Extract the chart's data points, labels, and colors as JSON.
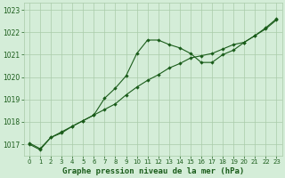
{
  "title": "Graphe pression niveau de la mer (hPa)",
  "bg_color": "#d4edd8",
  "line_color": "#1a5c1a",
  "grid_color": "#aacbaa",
  "text_color": "#1a5c1a",
  "xlim": [
    -0.5,
    23.5
  ],
  "ylim": [
    1016.5,
    1023.3
  ],
  "yticks": [
    1017,
    1018,
    1019,
    1020,
    1021,
    1022,
    1023
  ],
  "xticks": [
    0,
    1,
    2,
    3,
    4,
    5,
    6,
    7,
    8,
    9,
    10,
    11,
    12,
    13,
    14,
    15,
    16,
    17,
    18,
    19,
    20,
    21,
    22,
    23
  ],
  "series1_x": [
    0,
    1,
    2,
    3,
    4,
    5,
    6,
    7,
    8,
    9,
    10,
    11,
    12,
    13,
    14,
    15,
    16,
    17,
    18,
    19,
    20,
    21,
    22,
    23
  ],
  "series1_y": [
    1017.0,
    1016.75,
    1017.3,
    1017.5,
    1017.8,
    1018.05,
    1018.3,
    1019.05,
    1019.5,
    1020.05,
    1021.05,
    1021.65,
    1021.65,
    1021.45,
    1021.3,
    1021.05,
    1020.65,
    1020.65,
    1021.0,
    1021.2,
    1021.55,
    1021.85,
    1022.15,
    1022.55
  ],
  "series2_x": [
    0,
    1,
    2,
    3,
    4,
    5,
    6,
    7,
    8,
    9,
    10,
    11,
    12,
    13,
    14,
    15,
    16,
    17,
    18,
    19,
    20,
    21,
    22,
    23
  ],
  "series2_y": [
    1017.05,
    1016.8,
    1017.3,
    1017.55,
    1017.8,
    1018.05,
    1018.3,
    1018.55,
    1018.8,
    1019.2,
    1019.55,
    1019.85,
    1020.1,
    1020.4,
    1020.6,
    1020.85,
    1020.95,
    1021.05,
    1021.25,
    1021.45,
    1021.55,
    1021.85,
    1022.2,
    1022.6
  ],
  "ylabel_fontsize": 5.5,
  "xlabel_fontsize": 6.5,
  "tick_fontsize": 5.5,
  "xtick_fontsize": 5.0
}
